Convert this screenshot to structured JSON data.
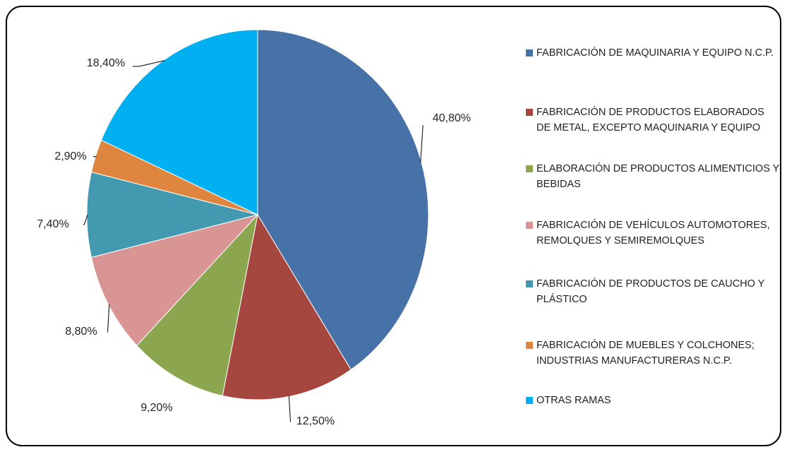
{
  "chart_data": {
    "type": "pie",
    "categories": [
      "FABRICACIÓN DE MAQUINARIA Y EQUIPO N.C.P.",
      "FABRICACIÓN DE PRODUCTOS ELABORADOS DE METAL, EXCEPTO MAQUINARIA Y EQUIPO",
      "ELABORACIÓN DE PRODUCTOS ALIMENTICIOS Y BEBIDAS",
      "FABRICACIÓN DE VEHÍCULOS AUTOMOTORES, REMOLQUES Y SEMIREMOLQUES",
      "FABRICACIÓN DE PRODUCTOS DE CAUCHO Y PLÁSTICO",
      "FABRICACIÓN DE MUEBLES Y COLCHONES; INDUSTRIAS MANUFACTURERAS N.C.P.",
      "OTRAS RAMAS"
    ],
    "values": [
      40.8,
      12.5,
      9.2,
      8.8,
      7.4,
      2.9,
      18.4
    ],
    "value_labels": [
      "40,80%",
      "12,50%",
      "9,20%",
      "8,80%",
      "7,40%",
      "2,90%",
      "18,40%"
    ],
    "colors": [
      "#4672a7",
      "#a6473f",
      "#8ba64f",
      "#d99594",
      "#4399b0",
      "#de8540",
      "#00b0f0"
    ],
    "legend": "right"
  }
}
